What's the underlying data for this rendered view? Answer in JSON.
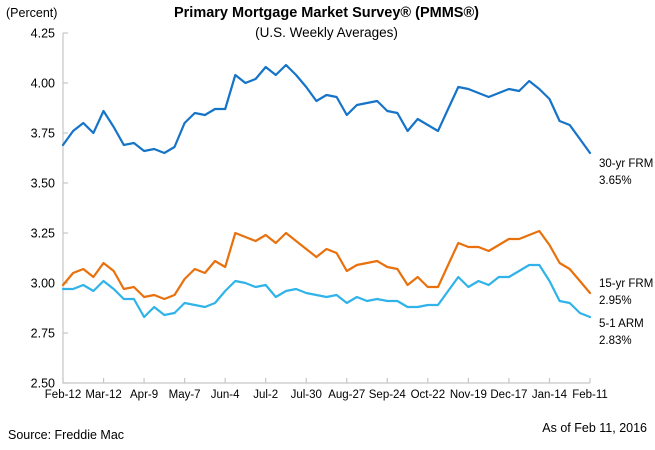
{
  "header": {
    "unit_label": "(Percent)",
    "title": "Primary Mortgage Market Survey® (PMMS®)",
    "subtitle": "(U.S. Weekly Averages)"
  },
  "chart_data": {
    "type": "line",
    "title": "Primary Mortgage Market Survey® (PMMS®)",
    "subtitle": "(U.S. Weekly Averages)",
    "ylabel": "(Percent)",
    "ylim": [
      2.5,
      4.25
    ],
    "ytick_step": 0.25,
    "grid": false,
    "legend_position": "right-of-line-ends",
    "axis_color": "#c6c6c6",
    "x_tick_labels": [
      "Feb-12",
      "Mar-12",
      "Apr-9",
      "May-7",
      "Jun-4",
      "Jul-2",
      "Jul-30",
      "Aug-27",
      "Sep-24",
      "Oct-22",
      "Nov-19",
      "Dec-17",
      "Jan-14",
      "Feb-11"
    ],
    "x_tick_every": 4,
    "x_note": "weekly observations",
    "series": [
      {
        "name": "30-yr FRM",
        "end_value": "3.65%",
        "color": "#1574c8",
        "values": [
          3.69,
          3.76,
          3.8,
          3.75,
          3.86,
          3.78,
          3.69,
          3.7,
          3.66,
          3.67,
          3.65,
          3.68,
          3.8,
          3.85,
          3.84,
          3.87,
          3.87,
          4.04,
          4.0,
          4.02,
          4.08,
          4.04,
          4.09,
          4.04,
          3.98,
          3.91,
          3.94,
          3.93,
          3.84,
          3.89,
          3.9,
          3.91,
          3.86,
          3.85,
          3.76,
          3.82,
          3.79,
          3.76,
          3.87,
          3.98,
          3.97,
          3.95,
          3.93,
          3.95,
          3.97,
          3.96,
          4.01,
          3.97,
          3.92,
          3.81,
          3.79,
          3.72,
          3.65
        ]
      },
      {
        "name": "15-yr FRM",
        "end_value": "2.95%",
        "color": "#e8710d",
        "values": [
          2.99,
          3.05,
          3.07,
          3.03,
          3.1,
          3.06,
          2.97,
          2.98,
          2.93,
          2.94,
          2.92,
          2.94,
          3.02,
          3.07,
          3.05,
          3.11,
          3.08,
          3.25,
          3.23,
          3.21,
          3.24,
          3.2,
          3.25,
          3.21,
          3.17,
          3.13,
          3.17,
          3.15,
          3.06,
          3.09,
          3.1,
          3.11,
          3.08,
          3.07,
          2.99,
          3.03,
          2.98,
          2.98,
          3.09,
          3.2,
          3.18,
          3.18,
          3.16,
          3.19,
          3.22,
          3.22,
          3.24,
          3.26,
          3.19,
          3.1,
          3.07,
          3.01,
          2.95
        ]
      },
      {
        "name": "5-1 ARM",
        "end_value": "2.83%",
        "color": "#2fb3e9",
        "values": [
          2.97,
          2.97,
          2.99,
          2.96,
          3.01,
          2.97,
          2.92,
          2.92,
          2.83,
          2.88,
          2.84,
          2.85,
          2.9,
          2.89,
          2.88,
          2.9,
          2.96,
          3.01,
          3.0,
          2.98,
          2.99,
          2.93,
          2.96,
          2.97,
          2.95,
          2.94,
          2.93,
          2.94,
          2.9,
          2.93,
          2.91,
          2.92,
          2.91,
          2.91,
          2.88,
          2.88,
          2.89,
          2.89,
          2.96,
          3.03,
          2.98,
          3.01,
          2.99,
          3.03,
          3.03,
          3.06,
          3.09,
          3.09,
          3.01,
          2.91,
          2.9,
          2.85,
          2.83
        ]
      }
    ]
  },
  "footer": {
    "source": "Source: Freddie Mac",
    "as_of": "As of Feb 11, 2016"
  }
}
